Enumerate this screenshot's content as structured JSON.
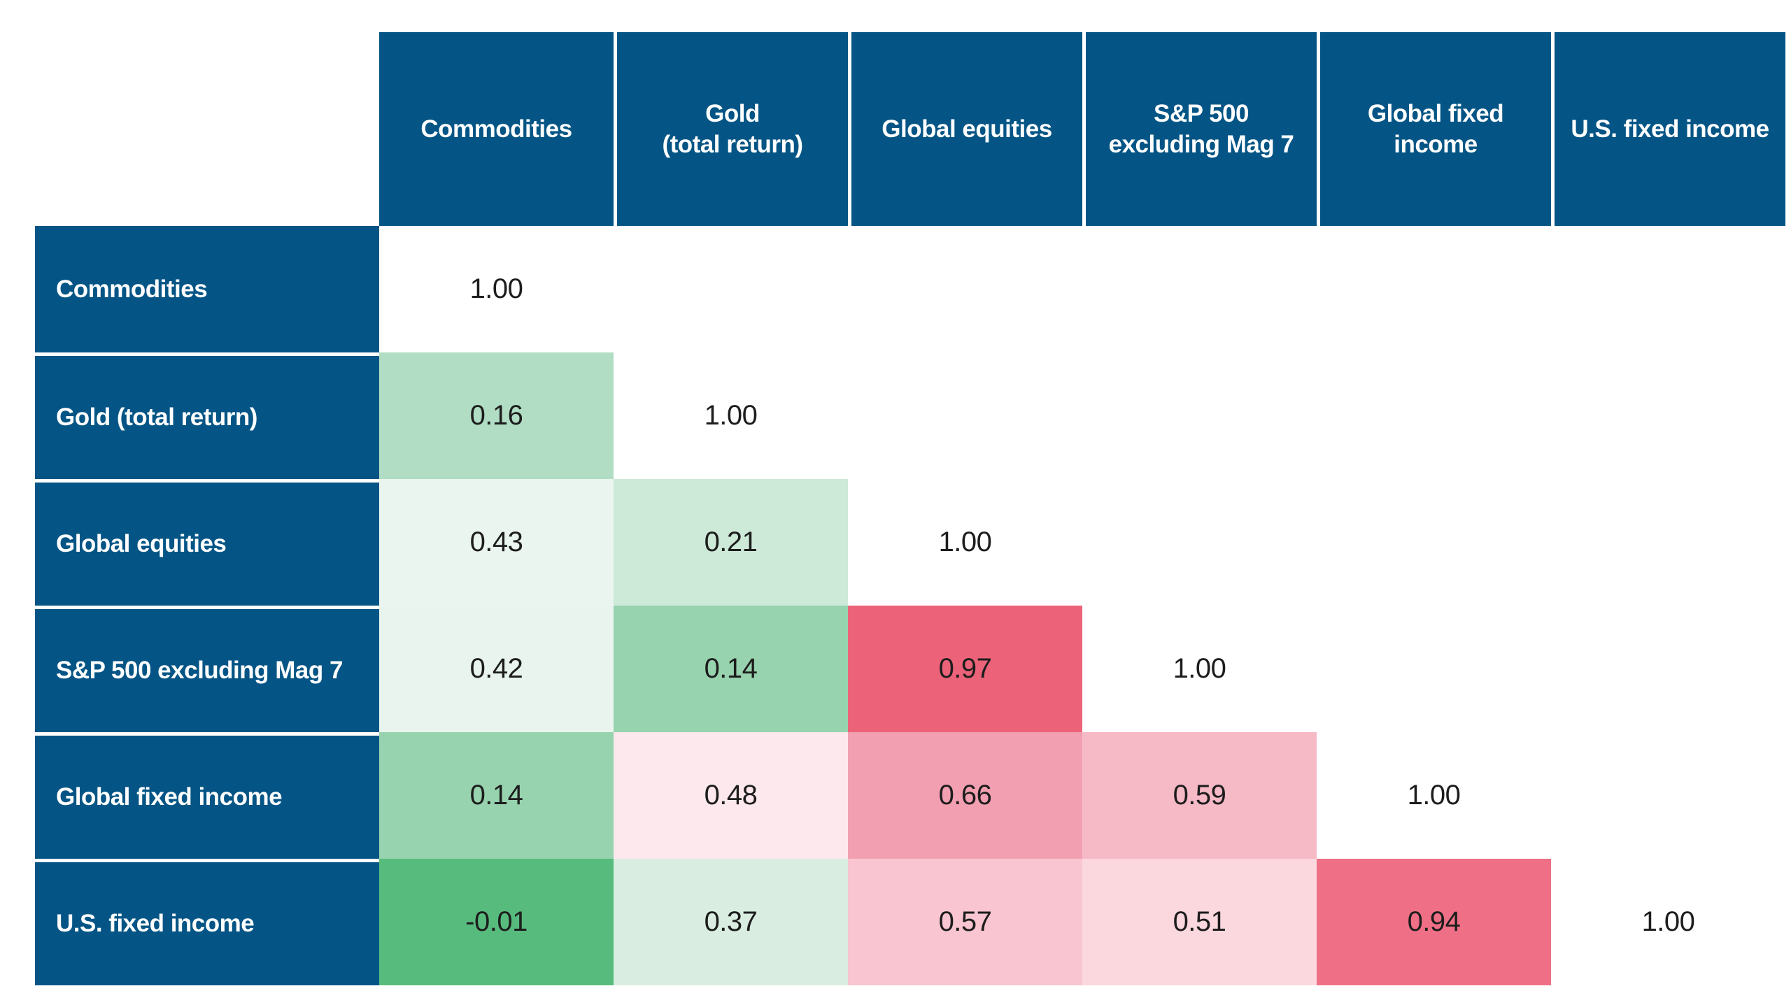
{
  "chart_data": {
    "type": "heatmap",
    "title": "",
    "categories": [
      "Commodities",
      "Gold (total return)",
      "Global equities",
      "S&P 500 excluding Mag 7",
      "Global fixed income",
      "U.S. fixed income"
    ],
    "matrix_lower_triangle": [
      [
        1.0
      ],
      [
        0.16,
        1.0
      ],
      [
        0.43,
        0.21,
        1.0
      ],
      [
        0.42,
        0.14,
        0.97,
        1.0
      ],
      [
        0.14,
        0.48,
        0.66,
        0.59,
        1.0
      ],
      [
        -0.01,
        0.37,
        0.57,
        0.51,
        0.94,
        1.0
      ]
    ],
    "colorscale": {
      "low": "#58bb7e",
      "mid": "#ffffff",
      "high": "#ec6379",
      "note": "green = low correlation, pink/red = high correlation, diagonal 1.00 cells white"
    },
    "legend": "none",
    "grid": "off"
  },
  "table": {
    "colors": {
      "header_bg": "#045585",
      "header_text": "#ffffff",
      "value_text": "#1d1d1d",
      "separator": "#ffffff"
    },
    "columns": [
      {
        "id": "commodities",
        "label": "Commodities"
      },
      {
        "id": "gold-total-return",
        "label": "Gold\n(total return)"
      },
      {
        "id": "global-equities",
        "label": "Global equities"
      },
      {
        "id": "sp500-excluding-mag7",
        "label": "S&P 500\nexcluding Mag 7"
      },
      {
        "id": "global-fixed-income",
        "label": "Global fixed\nincome"
      },
      {
        "id": "us-fixed-income",
        "label": "U.S. fixed income"
      }
    ],
    "rows": [
      {
        "id": "commodities",
        "label": "Commodities",
        "cells": [
          {
            "value": "1.00",
            "bg": "#ffffff"
          }
        ]
      },
      {
        "id": "gold-total-return",
        "label": "Gold (total return)",
        "cells": [
          {
            "value": "0.16",
            "bg": "#b0ddc4"
          },
          {
            "value": "1.00",
            "bg": "#ffffff"
          }
        ]
      },
      {
        "id": "global-equities",
        "label": "Global equities",
        "cells": [
          {
            "value": "0.43",
            "bg": "#eaf5ef"
          },
          {
            "value": "0.21",
            "bg": "#cde9d7"
          },
          {
            "value": "1.00",
            "bg": "#ffffff"
          }
        ]
      },
      {
        "id": "sp500-excluding-mag7",
        "label": "S&P 500 excluding Mag 7",
        "cells": [
          {
            "value": "0.42",
            "bg": "#e8f4ed"
          },
          {
            "value": "0.14",
            "bg": "#97d3ae"
          },
          {
            "value": "0.97",
            "bg": "#ec6379"
          },
          {
            "value": "1.00",
            "bg": "#ffffff"
          }
        ]
      },
      {
        "id": "global-fixed-income",
        "label": "Global fixed income",
        "cells": [
          {
            "value": "0.14",
            "bg": "#97d3ae"
          },
          {
            "value": "0.48",
            "bg": "#fce8ed"
          },
          {
            "value": "0.66",
            "bg": "#f29fb1"
          },
          {
            "value": "0.59",
            "bg": "#f6b9c6"
          },
          {
            "value": "1.00",
            "bg": "#ffffff"
          }
        ]
      },
      {
        "id": "us-fixed-income",
        "label": "U.S. fixed income",
        "cells": [
          {
            "value": "-0.01",
            "bg": "#58bb7e"
          },
          {
            "value": "0.37",
            "bg": "#d9eee1"
          },
          {
            "value": "0.57",
            "bg": "#f8c5d0"
          },
          {
            "value": "0.51",
            "bg": "#fbd7de"
          },
          {
            "value": "0.94",
            "bg": "#ef7086"
          },
          {
            "value": "1.00",
            "bg": "#ffffff"
          }
        ]
      }
    ]
  }
}
